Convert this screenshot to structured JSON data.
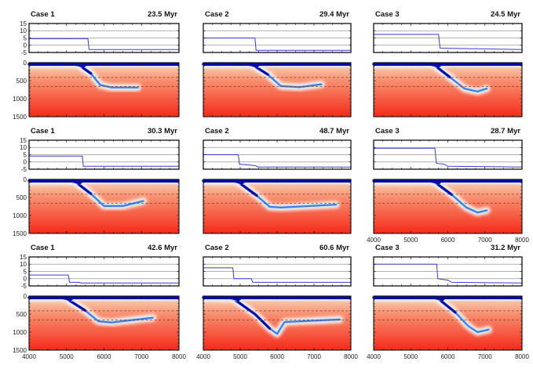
{
  "chart_data": {
    "type": "panel-grid",
    "description": "Subduction model snapshots: top panels show topography/elevation profile, bottom panels show temperature/composition cross-section with slab",
    "columns": 3,
    "rows": 3,
    "top_axis": {
      "yticks": [
        15,
        10,
        5,
        0,
        -5
      ],
      "ylim": [
        -5,
        15
      ],
      "grid_lines": [
        10,
        5,
        0,
        -5
      ]
    },
    "bottom_axis": {
      "yticks": [
        0,
        500,
        1000,
        1500
      ],
      "ylim": [
        0,
        1500
      ],
      "dashed_levels": [
        410,
        660
      ]
    },
    "x_axis": {
      "xlim": [
        4000,
        8000
      ],
      "xticks": [
        4000,
        5000,
        6000,
        7000,
        8000
      ]
    },
    "panels": [
      {
        "case": "Case 1",
        "time": "23.5 Myr",
        "row": 0,
        "col": 0,
        "profile": [
          [
            4000,
            4.5
          ],
          [
            5570,
            4.5
          ],
          [
            5600,
            -3
          ],
          [
            8000,
            -3
          ]
        ],
        "slab": [
          [
            4000,
            40
          ],
          [
            5300,
            40
          ],
          [
            5650,
            300
          ],
          [
            5900,
            620
          ],
          [
            6200,
            690
          ],
          [
            6900,
            690
          ]
        ]
      },
      {
        "case": "Case 2",
        "time": "29.4 Myr",
        "row": 0,
        "col": 1,
        "profile": [
          [
            4000,
            5
          ],
          [
            5400,
            5
          ],
          [
            5430,
            -3.5
          ],
          [
            8000,
            -3.5
          ]
        ],
        "slab": [
          [
            4000,
            40
          ],
          [
            5300,
            40
          ],
          [
            5750,
            330
          ],
          [
            6100,
            650
          ],
          [
            6600,
            680
          ],
          [
            7200,
            600
          ]
        ]
      },
      {
        "case": "Case 3",
        "time": "24.5 Myr",
        "row": 0,
        "col": 2,
        "profile": [
          [
            4000,
            7.5
          ],
          [
            5750,
            7.5
          ],
          [
            5790,
            -2
          ],
          [
            8000,
            -3
          ]
        ],
        "slab": [
          [
            4000,
            40
          ],
          [
            5600,
            40
          ],
          [
            6050,
            400
          ],
          [
            6450,
            720
          ],
          [
            6800,
            800
          ],
          [
            7050,
            720
          ]
        ]
      },
      {
        "case": "Case 1",
        "time": "30.3 Myr",
        "row": 1,
        "col": 0,
        "profile": [
          [
            4000,
            4
          ],
          [
            5420,
            4
          ],
          [
            5450,
            -3
          ],
          [
            8000,
            -3
          ]
        ],
        "slab": [
          [
            4000,
            40
          ],
          [
            5200,
            40
          ],
          [
            5650,
            400
          ],
          [
            6000,
            740
          ],
          [
            6500,
            740
          ],
          [
            7050,
            600
          ]
        ]
      },
      {
        "case": "Case 2",
        "time": "48.7 Myr",
        "row": 1,
        "col": 1,
        "profile": [
          [
            4000,
            5
          ],
          [
            4950,
            5
          ],
          [
            4980,
            -1.5
          ],
          [
            5400,
            -2.5
          ],
          [
            5500,
            -3.5
          ],
          [
            8000,
            -3.5
          ]
        ],
        "slab": [
          [
            4000,
            40
          ],
          [
            4900,
            40
          ],
          [
            5450,
            450
          ],
          [
            5800,
            760
          ],
          [
            6100,
            780
          ],
          [
            7600,
            700
          ]
        ]
      },
      {
        "case": "Case 3",
        "time": "28.7 Myr",
        "row": 1,
        "col": 2,
        "profile": [
          [
            4000,
            9.5
          ],
          [
            5650,
            9.5
          ],
          [
            5690,
            -1
          ],
          [
            5900,
            -1.5
          ],
          [
            6000,
            -3
          ],
          [
            8000,
            -3.5
          ]
        ],
        "slab": [
          [
            4000,
            40
          ],
          [
            5600,
            40
          ],
          [
            6100,
            420
          ],
          [
            6500,
            780
          ],
          [
            6800,
            920
          ],
          [
            7050,
            860
          ]
        ]
      },
      {
        "case": "Case 1",
        "time": "42.6 Myr",
        "row": 2,
        "col": 0,
        "profile": [
          [
            4000,
            2.5
          ],
          [
            5050,
            2.5
          ],
          [
            5080,
            -2.5
          ],
          [
            5350,
            -2.5
          ],
          [
            5380,
            -3
          ],
          [
            8000,
            -3
          ]
        ],
        "slab": [
          [
            4000,
            40
          ],
          [
            4950,
            40
          ],
          [
            5500,
            400
          ],
          [
            5850,
            700
          ],
          [
            6200,
            730
          ],
          [
            7300,
            600
          ]
        ]
      },
      {
        "case": "Case 2",
        "time": "60.6 Myr",
        "row": 2,
        "col": 1,
        "profile": [
          [
            4000,
            7.5
          ],
          [
            4800,
            7.5
          ],
          [
            4830,
            0
          ],
          [
            5300,
            0
          ],
          [
            5340,
            -2.5
          ],
          [
            8000,
            -2.5
          ]
        ],
        "slab": [
          [
            4000,
            40
          ],
          [
            4800,
            60
          ],
          [
            5400,
            500
          ],
          [
            5800,
            900
          ],
          [
            6000,
            1050
          ],
          [
            6200,
            720
          ],
          [
            7700,
            650
          ]
        ]
      },
      {
        "case": "Case 3",
        "time": "31.2 Myr",
        "row": 2,
        "col": 2,
        "profile": [
          [
            4000,
            10
          ],
          [
            5700,
            10
          ],
          [
            5730,
            0
          ],
          [
            6000,
            -1
          ],
          [
            6100,
            -2.5
          ],
          [
            8000,
            -3
          ]
        ],
        "slab": [
          [
            4000,
            40
          ],
          [
            5700,
            40
          ],
          [
            6200,
            450
          ],
          [
            6550,
            830
          ],
          [
            6800,
            1000
          ],
          [
            7100,
            930
          ]
        ]
      }
    ],
    "colors": {
      "profile_line": "#3a3ad0",
      "lithosphere": "#0a0aa8",
      "slab_core": "#2e66d8",
      "slab_halo": "#bfe6f0",
      "mantle_top": "#fbd9c4",
      "mantle_bottom": "#f42a1c",
      "dashed_line": "#8a3a2a"
    }
  }
}
